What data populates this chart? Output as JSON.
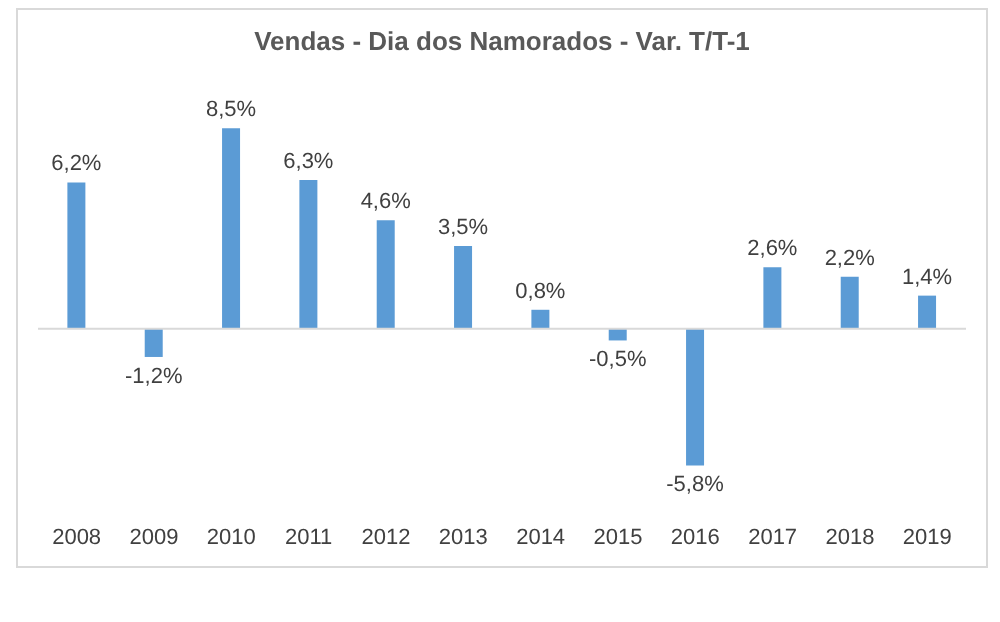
{
  "chart_data": {
    "type": "bar",
    "title": "Vendas - Dia dos Namorados - Var. T/T-1",
    "categories": [
      "2008",
      "2009",
      "2010",
      "2011",
      "2012",
      "2013",
      "2014",
      "2015",
      "2016",
      "2017",
      "2018",
      "2019"
    ],
    "values": [
      6.2,
      -1.2,
      8.5,
      6.3,
      4.6,
      3.5,
      0.8,
      -0.5,
      -5.8,
      2.6,
      2.2,
      1.4
    ],
    "value_labels": [
      "6,2%",
      "-1,2%",
      "8,5%",
      "6,3%",
      "4,6%",
      "3,5%",
      "0,8%",
      "-0,5%",
      "-5,8%",
      "2,6%",
      "2,2%",
      "1,4%"
    ],
    "color": "#5b9bd5"
  }
}
